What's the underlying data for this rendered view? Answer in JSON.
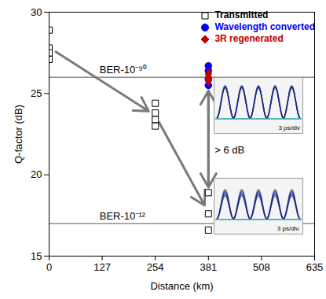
{
  "chart_data": {
    "type": "scatter",
    "x_label": "Distance (km)",
    "y_label": "Q-factor (dB)",
    "xlim": [
      0,
      635
    ],
    "xticks": [
      0,
      127,
      254,
      381,
      508,
      635
    ],
    "ylim": [
      15,
      30
    ],
    "yticks": [
      15,
      20,
      25,
      30
    ],
    "grid": false,
    "legend": "top-right",
    "series": [
      {
        "name": "Transmitted",
        "color": "#000000",
        "marker": "open_square",
        "x": [
          0,
          0,
          0,
          0,
          254,
          254,
          254,
          254,
          381,
          381,
          381
        ],
        "values": [
          28.9,
          27.8,
          27.5,
          27.1,
          24.4,
          23.8,
          23.4,
          23.0,
          18.9,
          17.6,
          16.6
        ]
      },
      {
        "name": "Wavelength converted",
        "color": "#0000ff",
        "marker": "circle",
        "x": [
          381,
          381,
          381,
          381
        ],
        "values": [
          26.7,
          26.4,
          25.9,
          25.5
        ]
      },
      {
        "name": "3R regenerated",
        "color": "#c00000",
        "marker": "diamond",
        "x": [
          381,
          381,
          381
        ],
        "values": [
          26.2,
          26.0,
          25.8
        ]
      }
    ],
    "reference_lines": [
      {
        "y": 26,
        "label": "BER-10⁻⁹⁰"
      },
      {
        "y": 17,
        "label": "BER-10⁻¹²"
      }
    ],
    "annotations": [
      {
        "text": "> 6 dB"
      }
    ],
    "insets": [
      {
        "label": "3 ps/div"
      },
      {
        "label": "3 ps/div."
      }
    ]
  }
}
